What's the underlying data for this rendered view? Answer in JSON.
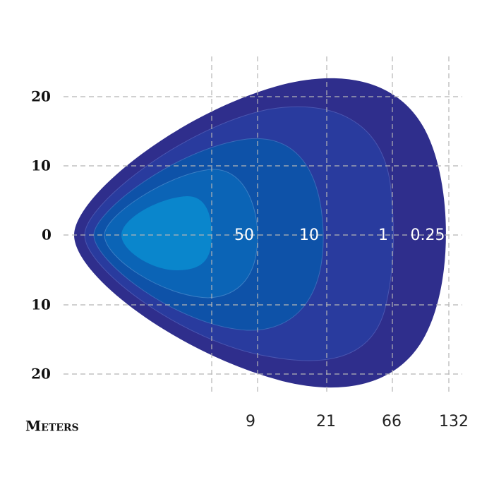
{
  "y_labels": [
    "20",
    "10",
    "0",
    "10",
    "20"
  ],
  "x_labels": [
    "9",
    "21",
    "66",
    "132"
  ],
  "contour_labels": [
    "50",
    "10",
    "1",
    "0.25"
  ],
  "axis_label": "Meters"
}
